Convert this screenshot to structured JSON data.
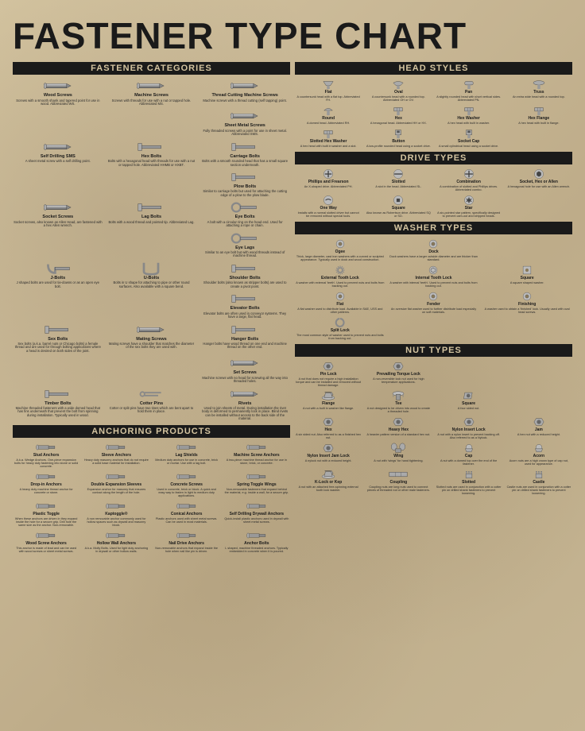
{
  "title": "FASTENER TYPE CHART",
  "sections": {
    "categories": {
      "title": "FASTENER CATEGORIES",
      "items": [
        {
          "n": "Wood Screws",
          "d": "Screws with a smooth shank and tapered point for use in wood. Abbreviated WS."
        },
        {
          "n": "Machine Screws",
          "d": "Screws with threads for use with a nut or tapped hole. Abbreviated MS."
        },
        {
          "n": "Thread Cutting Machine Screws",
          "d": "Machine screws with a thread cutting (self tapping) point."
        },
        {
          "n": "",
          "d": ""
        },
        {
          "n": "",
          "d": ""
        },
        {
          "n": "Sheet Metal Screws",
          "d": "Fully threaded screws with a point for use in sheet metal. Abbreviated SMS."
        },
        {
          "n": "Self Drilling SMS",
          "d": "A sheet metal screw with a self drilling point."
        },
        {
          "n": "Hex Bolts",
          "d": "Bolts with a hexagonal head with threads for use with a nut or tapped hole. Abbreviated HHMB or HXBT."
        },
        {
          "n": "Carriage Bolts",
          "d": "Bolts with a smooth rounded head that has a small square section underneath."
        },
        {
          "n": "",
          "d": ""
        },
        {
          "n": "",
          "d": ""
        },
        {
          "n": "Plow Bolts",
          "d": "Similar to carriage bolts but used for attaching the cutting edge of a plow to the plow blade."
        },
        {
          "n": "Socket Screws",
          "d": "Socket screws, also known as Allen Head, are fastened with a hex Allen wrench."
        },
        {
          "n": "Lag Bolts",
          "d": "Bolts with a wood thread and pointed tip. Abbreviated Lag."
        },
        {
          "n": "Eye Bolts",
          "d": "A bolt with a circular ring on the head end. Used for attaching a rope or chain."
        },
        {
          "n": "",
          "d": ""
        },
        {
          "n": "",
          "d": ""
        },
        {
          "n": "Eye Lags",
          "d": "Similar to an eye bolt but with wood threads instead of machine thread."
        },
        {
          "n": "J-Bolts",
          "d": "J shaped bolts are used for tie-downs or as an open eye bolt."
        },
        {
          "n": "U-Bolts",
          "d": "Bolts in U shape for attaching to pipe or other round surfaces. Also available with a square bend."
        },
        {
          "n": "Shoulder Bolts",
          "d": "Shoulder bolts (also known as stripper bolts) are used to create a pivot point."
        },
        {
          "n": "",
          "d": ""
        },
        {
          "n": "",
          "d": ""
        },
        {
          "n": "Elevator Bolts",
          "d": "Elevator bolts are often used in conveyor systems. They have a large, flat head."
        },
        {
          "n": "Sex Bolts",
          "d": "Sex bolts (a.k.a. barrel nuts or Chicago bolts) a female thread and are used for through bolting applications where a head is desired on both sides of the joint."
        },
        {
          "n": "Mating Screws",
          "d": "Mating screws have a shoulder that matches the diameter of the sex bolts they are used with."
        },
        {
          "n": "Hanger Bolts",
          "d": "Hanger bolts have wood thread on one end and machine thread on the other end."
        },
        {
          "n": "",
          "d": ""
        },
        {
          "n": "",
          "d": ""
        },
        {
          "n": "Set Screws",
          "d": "Machine screws with no head for screwing all the way into threaded holes."
        },
        {
          "n": "Timber Bolts",
          "d": "Machine threaded fasteners with a wide domed head that has fins underneath that prevent the bolt from spinning during installation. Typically used in wood."
        },
        {
          "n": "Cotter Pins",
          "d": "Cotter or split pins have two tines which are bent apart to hold them in place."
        },
        {
          "n": "Rivets",
          "d": "Used to join sheets of metal. During installation the rivet body is deformed to permanently lock in place. Blind rivets can be installed without access to the back side of the material."
        }
      ]
    },
    "anchoring": {
      "title": "ANCHORING PRODUCTS",
      "items": [
        {
          "n": "Stud Anchors",
          "d": "A.k.a. Wedge Anchors. One-piece expansion bolts for heavy duty fastening into stone or solid concrete."
        },
        {
          "n": "Sleeve Anchors",
          "d": "Heavy duty masonry anchors that do not require a solid base material for installation."
        },
        {
          "n": "Lag Shields",
          "d": "Medium duty anchors for use in concrete, brick or mortar. Use with a lag bolt."
        },
        {
          "n": "Machine Screw Anchors",
          "d": "A two-piece machine thread anchor for use in stone, brick, or concrete."
        },
        {
          "n": "Drop-in Anchors",
          "d": "A heavy duty machine thread anchor for concrete or stone."
        },
        {
          "n": "Double Expansion Sleeves",
          "d": "Expansion anchor for masonry that ensures contact along the length of the hole."
        },
        {
          "n": "Concrete Screws",
          "d": "Used in concrete, brick or block. A quick and easy way to fasten in light to medium duty applications."
        },
        {
          "n": "Spring Toggle Wings",
          "d": "Non-removable fasteners that expand behind the material, e.g. inside a wall, for a secure grip."
        },
        {
          "n": "Plastic Toggle",
          "d": "When these anchors are driven in they expand inside the hole for a secure grip. Drill hole the same size as the anchor. Non-removable."
        },
        {
          "n": "Kaptoggle®",
          "d": "A non removable anchor commonly used for hollow spaces such as drywall and masonry block."
        },
        {
          "n": "Conical Anchors",
          "d": "Plastic anchors used with sheet metal screws. Can be used in most materials."
        },
        {
          "n": "Self Drilling Drywall Anchors",
          "d": "Quick-install plastic anchors used in drywall with sheet metal screws."
        },
        {
          "n": "Wood Screw Anchors",
          "d": "This anchor is made of lead and can be used with wood screws or sheet metal screws."
        },
        {
          "n": "Hollow Wall Anchors",
          "d": "A.k.a. Molly Bolts. Used for light duty anchoring in drywall or other hollow walls."
        },
        {
          "n": "Nail Drive Anchors",
          "d": "Non-removable anchors that expand inside the hole when nail like pin is driven."
        },
        {
          "n": "Anchor Bolts",
          "d": "L shaped, machine threaded anchors. Typically embedded in concrete when it is poured."
        }
      ]
    },
    "heads": {
      "title": "HEAD STYLES",
      "items": [
        {
          "n": "Flat",
          "d": "A countersunk head with a flat top. Abbreviated FH."
        },
        {
          "n": "Oval",
          "d": "A countersunk head with a rounded top. Abbreviated OH or OV."
        },
        {
          "n": "Pan",
          "d": "A slightly rounded head with short vertical sides. Abbreviated PN."
        },
        {
          "n": "Truss",
          "d": "An extra wide head with a rounded top."
        },
        {
          "n": "Round",
          "d": "A domed head. Abbreviated RH."
        },
        {
          "n": "Hex",
          "d": "A hexagonal head. Abbreviated HH or HX."
        },
        {
          "n": "Hex Washer",
          "d": "A hex head with built in washer."
        },
        {
          "n": "Hex Flange",
          "d": "A hex head with built in flange."
        },
        {
          "n": "Slotted Hex Washer",
          "d": "A hex head with built in washer and a slot."
        },
        {
          "n": "Button",
          "d": "A low-profile rounded head using a socket drive."
        },
        {
          "n": "Socket Cap",
          "d": "A small cylindrical head using a socket drive."
        },
        {
          "n": "",
          "d": ""
        }
      ]
    },
    "drives": {
      "title": "DRIVE TYPES",
      "items": [
        {
          "n": "Phillips and Frearson",
          "d": "An X-shaped drive. Abbreviated PH."
        },
        {
          "n": "Slotted",
          "d": "A slot in the head. Abbreviated SL."
        },
        {
          "n": "Combination",
          "d": "A combination of slotted and Phillips drives. Abbreviated combo."
        },
        {
          "n": "Socket, Hex or Allen",
          "d": "A hexagonal hole for use with an Allen wrench."
        },
        {
          "n": "One Way",
          "d": "Installs with a normal slotted driver but cannot be removed without special tools."
        },
        {
          "n": "Square",
          "d": "Also known as Robertson drive. Abbreviated SQ or SD."
        },
        {
          "n": "Star",
          "d": "A six-pointed star pattern, specifically designed to prevent cam-out and stripped heads."
        },
        {
          "n": "",
          "d": ""
        }
      ]
    },
    "washers": {
      "title": "WASHER TYPES",
      "items": [
        {
          "n": "Ogee",
          "d": "Thick, large diameter, cast iron washers with a curved or sculpted appearance. Typically used in dock and wood construction."
        },
        {
          "n": "Dock",
          "d": "Dock washers have a larger outside diameter and are thicker than standard."
        },
        {
          "n": "",
          "d": ""
        },
        {
          "n": "External Tooth Lock",
          "d": "A washer with external 'teeth'. Used to prevent nuts and bolts from backing out."
        },
        {
          "n": "Internal Tooth Lock",
          "d": "A washer with internal 'teeth'. Used to prevent nuts and bolts from backing out."
        },
        {
          "n": "Square",
          "d": "A square shaped washer."
        },
        {
          "n": "Flat",
          "d": "A flat washer used to distribute load. Available in SAE, USS and other patterns."
        },
        {
          "n": "Fender",
          "d": "An oversize flat washer used to further distribute load especially on soft materials."
        },
        {
          "n": "Finishing",
          "d": "A washer used to obtain a 'finished' look. Usually used with oval head screws."
        },
        {
          "n": "Split Lock",
          "d": "The most common style of washer used to prevent nuts and bolts from backing out."
        }
      ]
    },
    "nuts": {
      "title": "NUT TYPES",
      "items": [
        {
          "n": "Pin Lock",
          "d": "A nut that does not require a high installation torque and can be installed and removed without thread damage."
        },
        {
          "n": "Prevailing Torque Lock",
          "d": "A non-reversible lock nut used for high temperature applications."
        },
        {
          "n": "",
          "d": ""
        },
        {
          "n": "",
          "d": ""
        },
        {
          "n": "Flange",
          "d": "A nut with a built in washer like flange."
        },
        {
          "n": "Tee",
          "d": "A nut designed to be driven into wood to create a threaded hole."
        },
        {
          "n": "Square",
          "d": "A four sided nut."
        },
        {
          "n": "",
          "d": ""
        },
        {
          "n": "Hex",
          "d": "A six sided nut. Also referred to as a finished hex nut."
        },
        {
          "n": "Heavy Hex",
          "d": "A heavier pattern version of a standard hex nut."
        },
        {
          "n": "Nylon Insert Lock",
          "d": "A nut with a nylon insert to prevent backing off. Also referred to as a Nylock."
        },
        {
          "n": "Jam",
          "d": "A hex nut with a reduced height."
        },
        {
          "n": "Nylon Insert Jam Lock",
          "d": "A nylock nut with a reduced height."
        },
        {
          "n": "Wing",
          "d": "A nut with 'wings' for hand tightening."
        },
        {
          "n": "Cap",
          "d": "A nut with a domed top over the end of the fastener."
        },
        {
          "n": "Acorn",
          "d": "Acorn nuts are a high crown type of cap nut, used for appearance."
        },
        {
          "n": "K-Lock or Kep",
          "d": "A nut with an attached free-spinning external tooth lock washer."
        },
        {
          "n": "Coupling",
          "d": "Coupling nuts are long nuts used to connect pieces of threaded rod or other male fasteners."
        },
        {
          "n": "Slotted",
          "d": "Slotted nuts are used in conjunction with a cotter pin on drilled shank fasteners to prevent loosening."
        },
        {
          "n": "Castle",
          "d": "Castle nuts are used in conjunction with a cotter pin on drilled shank fasteners to prevent loosening."
        }
      ]
    }
  }
}
